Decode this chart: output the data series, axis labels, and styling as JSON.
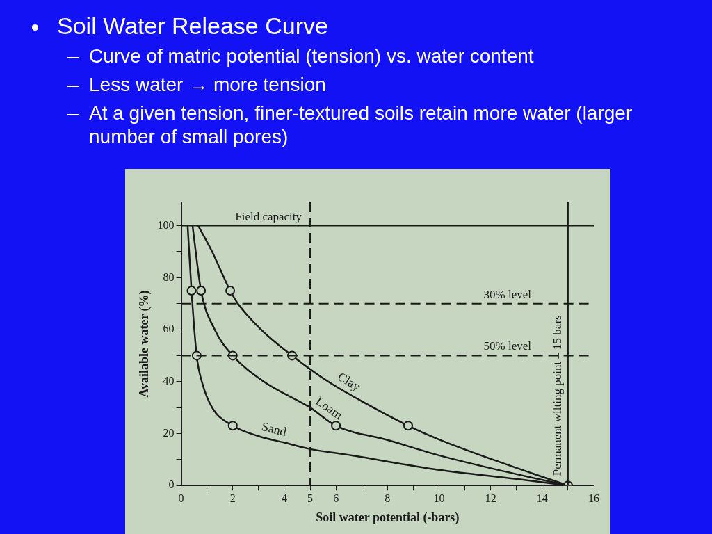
{
  "chart_data": {
    "type": "line",
    "title": "Soil Water Release Curve",
    "xlabel": "Soil water potential (-bars)",
    "ylabel": "Available water (%)",
    "annotations": [
      "Curve of matric potential (tension) vs. water content",
      "Less water → more tension",
      "At a given tension, finer-textured soils retain more water (larger number of small pores)"
    ],
    "xlim": [
      0,
      16
    ],
    "ylim": [
      0,
      109
    ],
    "xticks": [
      0,
      {
        "value": 1,
        "label": null
      },
      2,
      {
        "value": 3,
        "label": null
      },
      4,
      5,
      6,
      {
        "value": 7,
        "label": null
      },
      8,
      {
        "value": 9,
        "label": null
      },
      10,
      {
        "value": 11,
        "label": null
      },
      12,
      {
        "value": 13,
        "label": null
      },
      14,
      {
        "value": 15,
        "label": null
      },
      16
    ],
    "yticks": [
      0,
      {
        "value": 10,
        "label": null
      },
      20,
      {
        "value": 30,
        "label": null
      },
      40,
      {
        "value": 50,
        "label": null
      },
      60,
      {
        "value": 70,
        "label": null
      },
      80,
      {
        "value": 90,
        "label": null
      },
      100
    ],
    "grid": false,
    "legend": false,
    "line_style": "solid",
    "marker": "none",
    "ref_lines": [
      {
        "axis": "x",
        "value": 5,
        "label": "Field capacity",
        "line_style": "dashed",
        "color": "#1a1a1a"
      },
      {
        "axis": "y",
        "value": 100,
        "line_style": "solid",
        "color": "#1a1a1a"
      },
      {
        "axis": "y",
        "value": 70,
        "label": "30% level",
        "line_style": "dashed",
        "color": "#1a1a1a"
      },
      {
        "axis": "y",
        "value": 50,
        "label": "50% level",
        "line_style": "dashed",
        "color": "#1a1a1a"
      },
      {
        "axis": "x",
        "value": 15,
        "label": "Permanent wilting point – 15 bars",
        "line_style": "solid",
        "color": "#1a1a1a"
      }
    ],
    "series": [
      {
        "name": "Clay",
        "color": "#1a1a1a",
        "x": [
          0.66,
          1.2,
          1.9,
          2.2,
          3.1,
          4.3,
          5.7,
          6.9,
          8.8,
          10,
          12.5,
          15
        ],
        "values": [
          100,
          90,
          75,
          70,
          60,
          50,
          40,
          33,
          23,
          17.7,
          8.5,
          0
        ]
      },
      {
        "name": "Loam",
        "color": "#1a1a1a",
        "x": [
          0.44,
          0.77,
          1.3,
          2,
          3.2,
          5,
          6,
          8,
          10,
          12.5,
          15
        ],
        "values": [
          100,
          75,
          60,
          50,
          40,
          30,
          23,
          17.5,
          11.6,
          5.5,
          0
        ]
      },
      {
        "name": "Sand",
        "color": "#1a1a1a",
        "x": [
          0.25,
          0.4,
          0.6,
          0.8,
          1.2,
          2,
          3,
          4,
          5,
          6.35,
          10,
          13,
          15
        ],
        "values": [
          100,
          75,
          50,
          40,
          30,
          23,
          19,
          16.5,
          14,
          12,
          6,
          2.5,
          0
        ]
      },
      {
        "type": "scatter",
        "marker": "circle",
        "color": "#1a1a1a",
        "x": [
          0.4,
          0.77,
          1.9,
          0.6,
          2,
          4.3,
          2,
          6,
          8.8,
          15
        ],
        "values": [
          75,
          75,
          75,
          50,
          50,
          50,
          23,
          23,
          23,
          0
        ]
      }
    ]
  }
}
